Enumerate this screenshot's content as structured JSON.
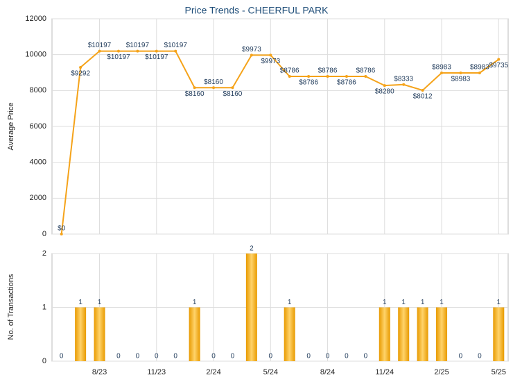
{
  "chart_data": [
    {
      "type": "line",
      "title": "Price Trends - CHEERFUL PARK",
      "y_label": "Average Price",
      "color": "#f5a31a",
      "categories": [
        null,
        null,
        "8/23",
        null,
        null,
        "11/23",
        null,
        null,
        "2/24",
        null,
        null,
        "5/24",
        null,
        null,
        "8/24",
        null,
        null,
        "11/24",
        null,
        null,
        "2/25",
        null,
        null,
        "5/25"
      ],
      "values": [
        0,
        9292,
        10197,
        10197,
        10197,
        10197,
        10197,
        8160,
        8160,
        8160,
        9973,
        9973,
        8786,
        8786,
        8786,
        8786,
        8786,
        8280,
        8333,
        8012,
        8983,
        8983,
        8983,
        9735
      ],
      "value_labels": [
        "$0",
        "$9292",
        "$10197",
        "$10197",
        "$10197",
        "$10197",
        "$10197",
        "$8160",
        "$8160",
        "$8160",
        "$9973",
        "$9973",
        "$8786",
        "$8786",
        "$8786",
        "$8786",
        "$8786",
        "$8280",
        "$8333",
        "$8012",
        "$8983",
        "$8983",
        "$8983",
        "$9735"
      ],
      "ylim": [
        0,
        12000
      ],
      "yticks": [
        0,
        2000,
        4000,
        6000,
        8000,
        10000,
        12000
      ],
      "grid": true
    },
    {
      "type": "bar",
      "y_label": "No. of Transactions",
      "color": "#f0a000",
      "categories": [
        null,
        null,
        "8/23",
        null,
        null,
        "11/23",
        null,
        null,
        "2/24",
        null,
        null,
        "5/24",
        null,
        null,
        "8/24",
        null,
        null,
        "11/24",
        null,
        null,
        "2/25",
        null,
        null,
        "5/25"
      ],
      "values": [
        0,
        1,
        1,
        0,
        0,
        0,
        0,
        1,
        0,
        0,
        2,
        0,
        1,
        0,
        0,
        0,
        0,
        1,
        1,
        1,
        1,
        0,
        0,
        1
      ],
      "ylim": [
        0,
        2
      ],
      "yticks": [
        0,
        1,
        2
      ],
      "grid": true
    }
  ]
}
